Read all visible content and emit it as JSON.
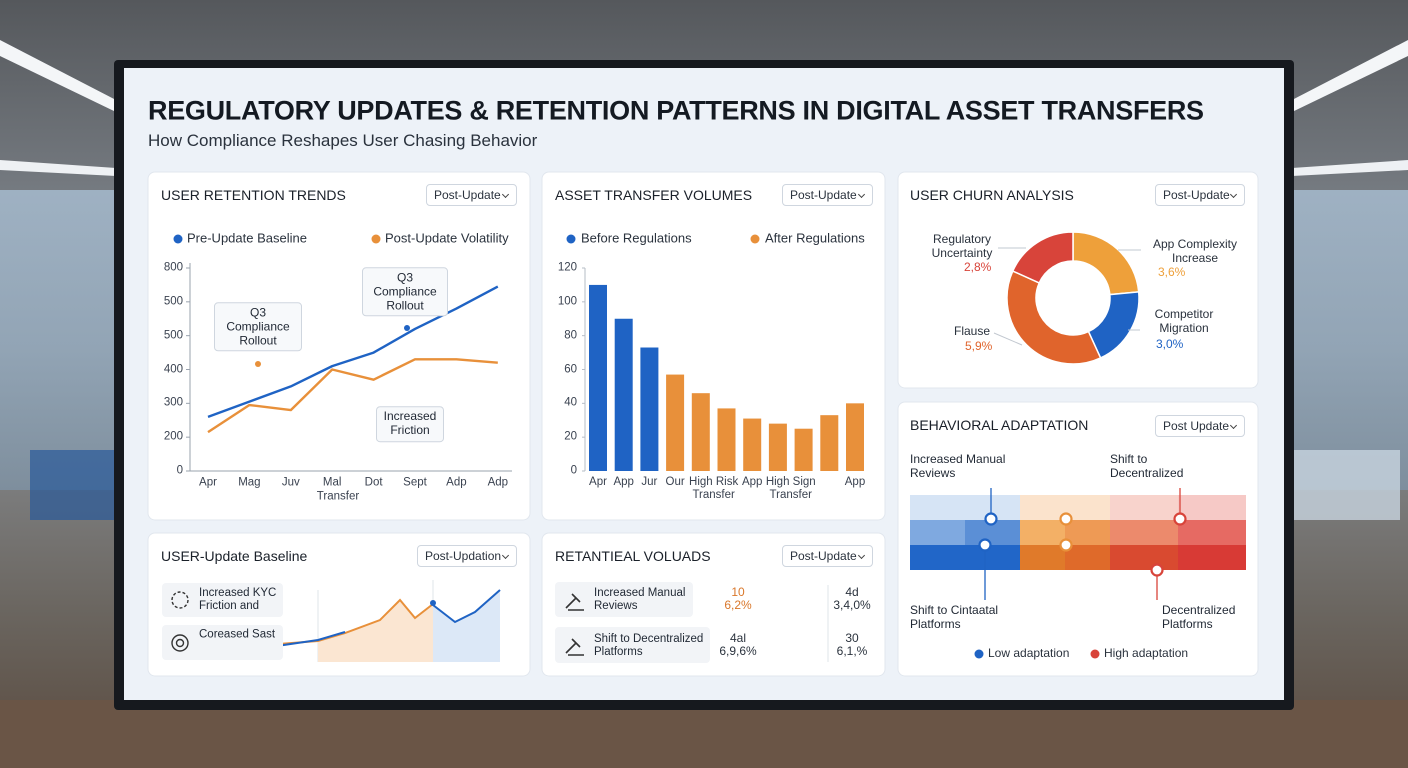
{
  "header": {
    "title": "REGULATORY UPDATES & RETENTION PATTERNS IN DIGITAL ASSET TRANSFERS",
    "subtitle": "How Compliance Reshapes User Chasing Behavior"
  },
  "chart_data": [
    {
      "type": "line",
      "title": "USER RETENTION TRENDS",
      "dropdown": "Post-Update",
      "categories": [
        "Apr",
        "Mag",
        "Juv",
        "Mal",
        "Dot",
        "Sept",
        "Adp",
        "Adp"
      ],
      "xlabel": "Transfer",
      "series": [
        {
          "name": "Pre-Update Baseline",
          "color": "#1f63c4",
          "values": [
            160,
            205,
            250,
            310,
            350,
            420,
            480,
            545
          ]
        },
        {
          "name": "Post-Update Volatility",
          "color": "#e8903a",
          "values": [
            115,
            195,
            180,
            300,
            270,
            330,
            330,
            320
          ]
        }
      ],
      "ylim": [
        0,
        600
      ],
      "yticks": [
        0,
        {
          "value": 100,
          "label": "200"
        },
        {
          "value": 200,
          "label": "300"
        },
        {
          "value": 300,
          "label": "400"
        },
        {
          "value": 400,
          "label": "500"
        },
        {
          "value": 500,
          "label": "500"
        },
        {
          "value": 600,
          "label": "800"
        }
      ],
      "annotations": [
        "Q3 Compliance Rollout",
        "Q3 Compliance Rollout",
        "Increased Friction"
      ]
    },
    {
      "type": "bar",
      "title": "ASSET TRANSFER VOLUMES",
      "dropdown": "Post-Update",
      "categories": [
        "Apr",
        "App",
        "Jur",
        "Our",
        "High Risk Transfer",
        null,
        "App",
        "High Sign Transfer",
        null,
        null,
        "App"
      ],
      "series": [
        {
          "name": "Before Regulations",
          "color": "#1f63c4",
          "values": [
            110,
            90,
            73,
            null,
            null,
            null,
            null,
            null,
            null,
            null,
            null
          ]
        },
        {
          "name": "After Regulations",
          "color": "#e8903a",
          "values": [
            null,
            null,
            null,
            57,
            46,
            37,
            31,
            28,
            25,
            33,
            40
          ]
        }
      ],
      "ylim": [
        0,
        120
      ],
      "yticks": [
        0,
        20,
        40,
        60,
        80,
        100,
        120
      ]
    },
    {
      "type": "pie",
      "title": "USER CHURN ANALYSIS",
      "dropdown": "Post-Update",
      "categories": [
        "App Complexity Increase",
        "Competitor Migration",
        "Flause",
        "Regulatory Uncertainty"
      ],
      "values": [
        3.6,
        3.0,
        5.9,
        2.8
      ],
      "value_labels": [
        "3,6%",
        "3,0%",
        "5,9%",
        "2,8%"
      ],
      "colors": [
        "#eea03a",
        "#1f63c4",
        "#e0642c",
        "#d8443a"
      ]
    }
  ],
  "adaptation": {
    "title": "BEHAVIORAL ADAPTATION",
    "dropdown": "Post Update",
    "labels": [
      "Increased Manual Reviews",
      "Shift to Decentralized",
      "Shift to Cintaatal Platforms",
      "Decentralized Platforms"
    ],
    "legend": [
      {
        "name": "Low adaptation",
        "color": "#1f63c4"
      },
      {
        "name": "High adaptation",
        "color": "#d8443a"
      }
    ]
  },
  "retention_panel": {
    "title": "USER-Update Baseline",
    "dropdown": "Post-Updation",
    "items": [
      "Increased KYC Friction and",
      "Coreased Sast"
    ]
  },
  "volumes_panel": {
    "title": "RETANTIEAL VOLUADS",
    "dropdown": "Post-Update",
    "rows": [
      {
        "label": "Increased Manual Reviews",
        "cells": [
          "10",
          "6,2%",
          "4d",
          "3,4,0%"
        ]
      },
      {
        "label": "Shift to Decentralized Platforms",
        "cells": [
          "4al",
          "6,9,6%",
          "30",
          "6,1,%"
        ]
      }
    ]
  }
}
